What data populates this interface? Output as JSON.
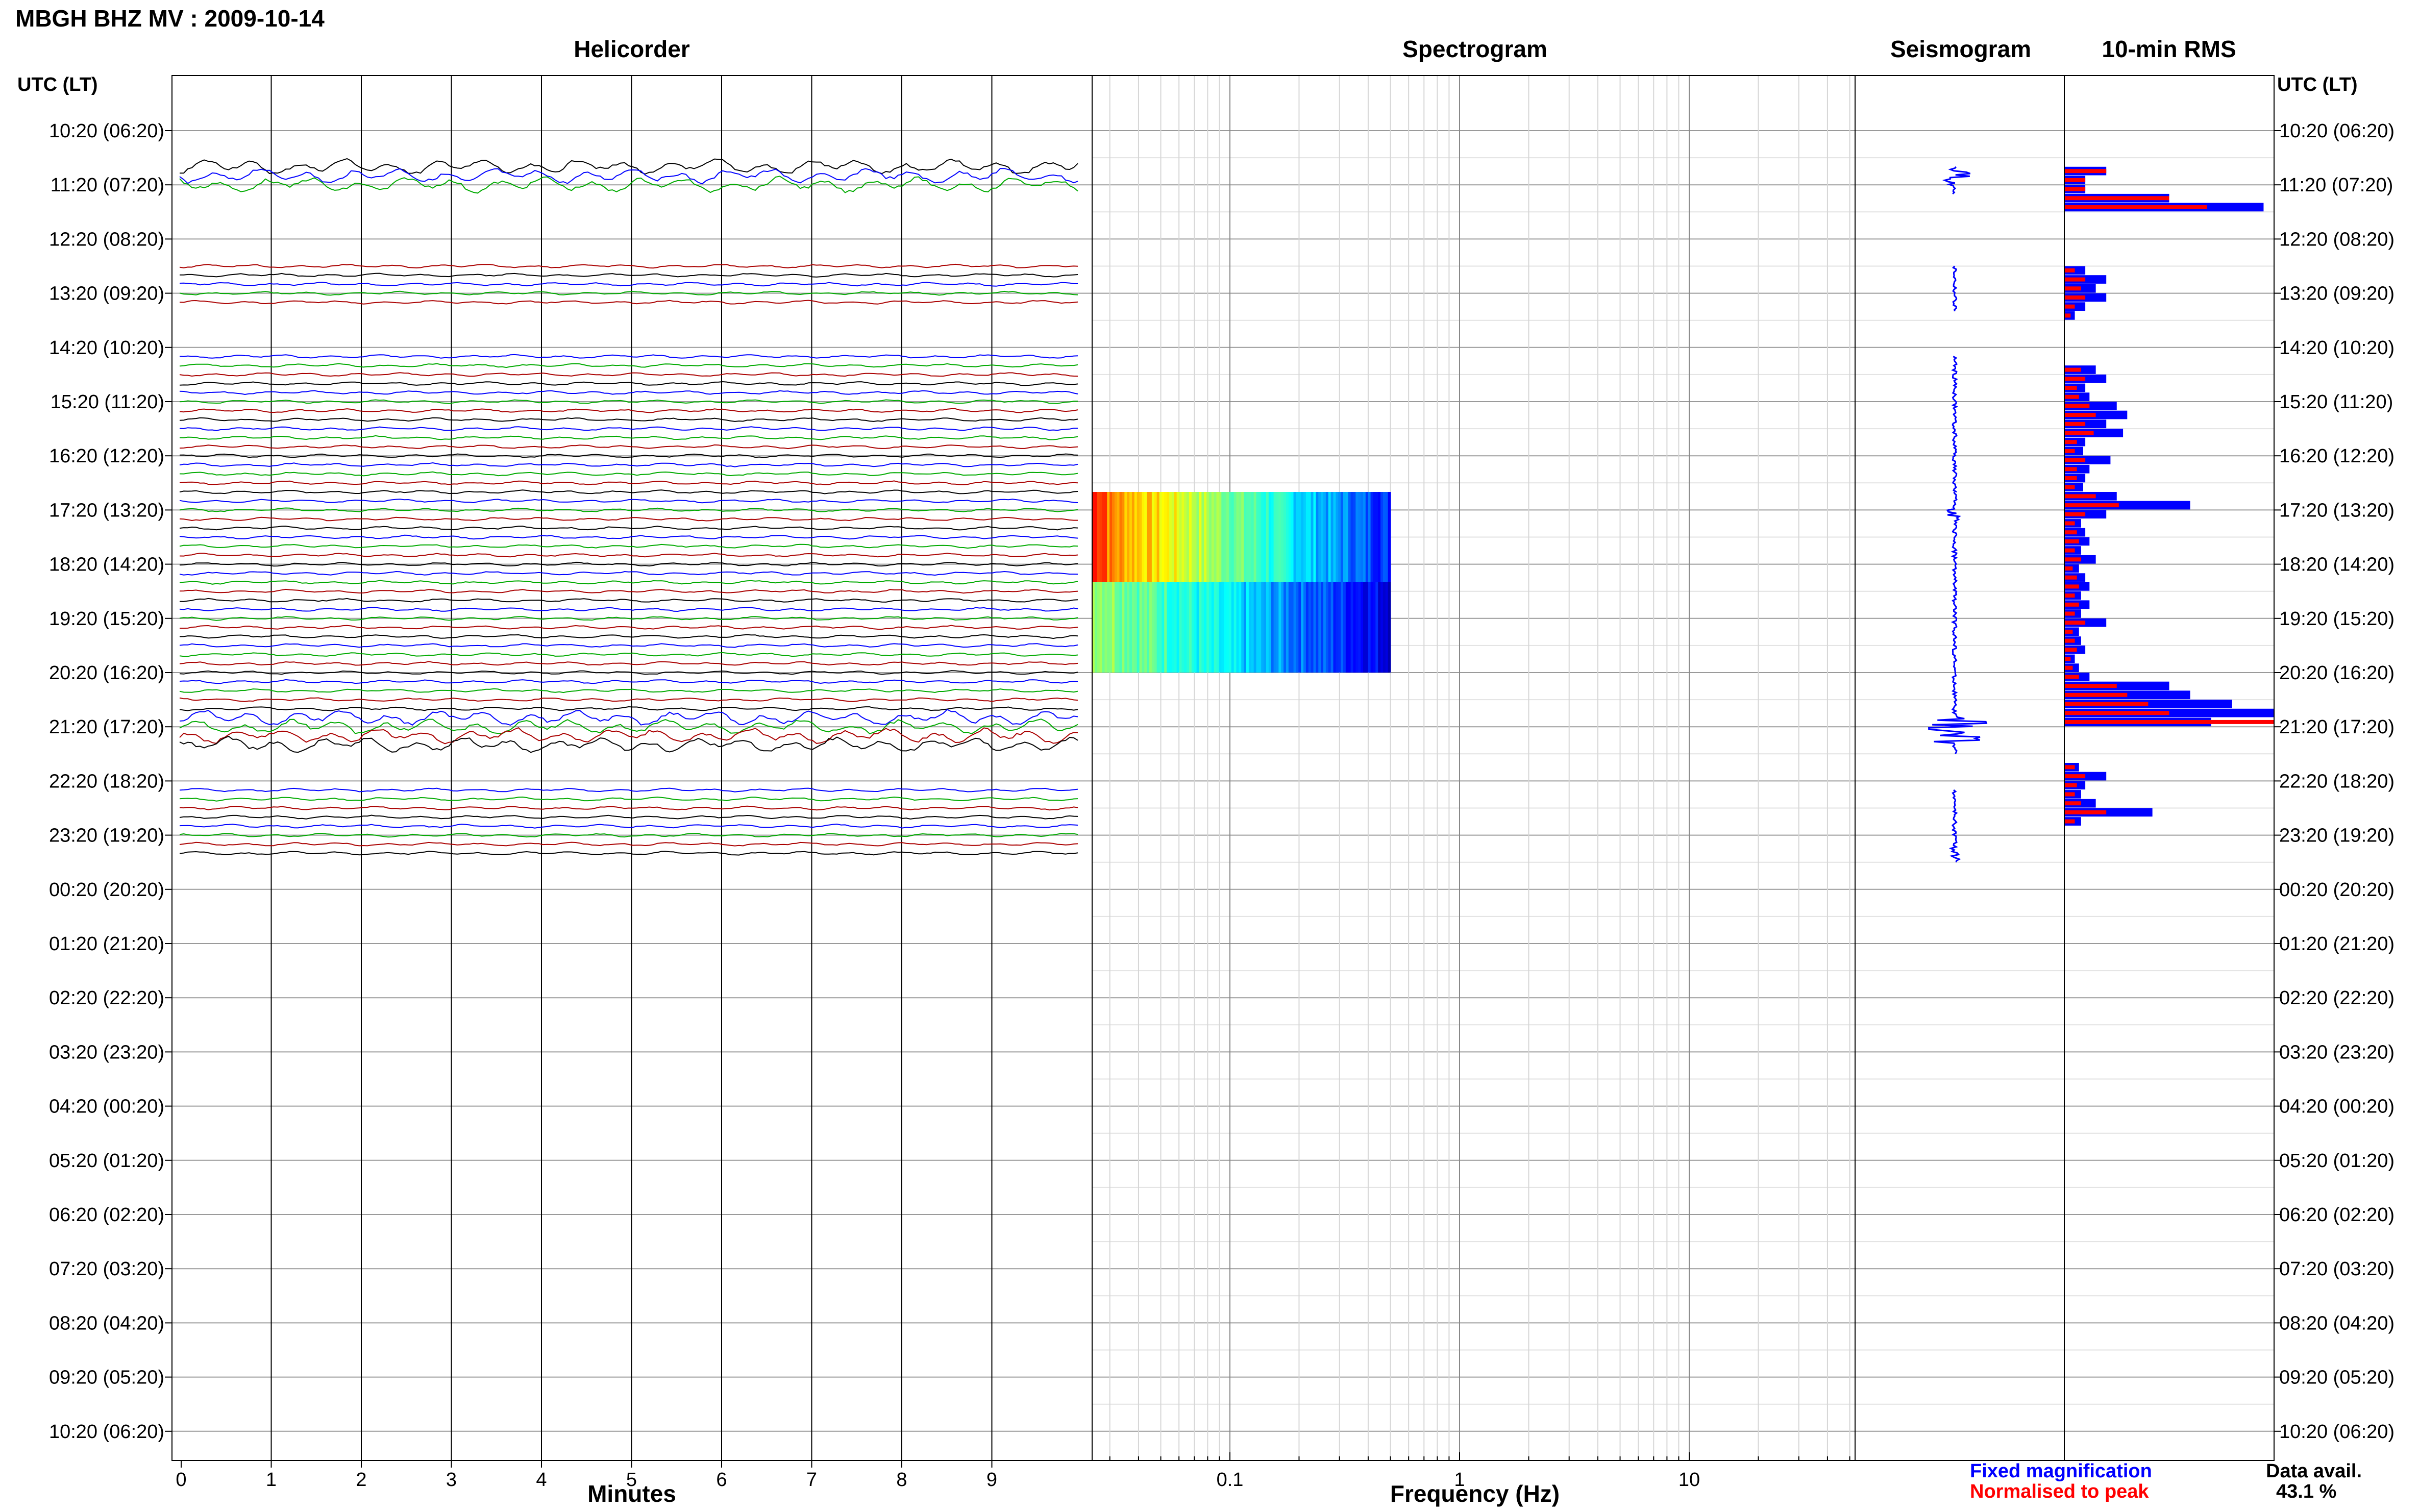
{
  "title": "MBGH BHZ MV : 2009-10-14",
  "panels": {
    "helicorder": "Helicorder",
    "spectrogram": "Spectrogram",
    "seismogram": "Seismogram",
    "rms": "10-min RMS"
  },
  "time_axis": {
    "label": "UTC (LT)",
    "ticks": [
      "10:20 (06:20)",
      "11:20 (07:20)",
      "12:20 (08:20)",
      "13:20 (09:20)",
      "14:20 (10:20)",
      "15:20 (11:20)",
      "16:20 (12:20)",
      "17:20 (13:20)",
      "18:20 (14:20)",
      "19:20 (15:20)",
      "20:20 (16:20)",
      "21:20 (17:20)",
      "22:20 (18:20)",
      "23:20 (19:20)",
      "00:20 (20:20)",
      "01:20 (21:20)",
      "02:20 (22:20)",
      "03:20 (23:20)",
      "04:20 (00:20)",
      "05:20 (01:20)",
      "06:20 (02:20)",
      "07:20 (03:20)",
      "08:20 (04:20)",
      "09:20 (05:20)",
      "10:20 (06:20)"
    ]
  },
  "helicorder_axis": {
    "label": "Minutes",
    "ticks": [
      "0",
      "1",
      "2",
      "3",
      "4",
      "5",
      "6",
      "7",
      "8",
      "9"
    ]
  },
  "spectrogram_axis": {
    "label": "Frequency (Hz)",
    "ticks": [
      "0.1",
      "1",
      "10"
    ]
  },
  "legend": {
    "fixed": "Fixed magnification",
    "normalised": "Normalised to peak",
    "fixed_color": "#0000ff",
    "normalised_color": "#ff0000"
  },
  "data_avail": {
    "label": "Data avail.",
    "value": "43.1 %"
  },
  "colors": {
    "trace_cycle": [
      "#000000",
      "#0000ff",
      "#00aa00",
      "#aa0000"
    ]
  },
  "chart_data": {
    "type": "helicorder",
    "day": "2009-10-14",
    "station": "MBGH",
    "channel": "BHZ",
    "network": "MV",
    "data_segments_utc": [
      [
        "11:00",
        "11:30"
      ],
      [
        "12:50",
        "13:40"
      ],
      [
        "14:30",
        "17:00"
      ],
      [
        "17:00",
        "21:50"
      ],
      [
        "22:30",
        "23:50"
      ]
    ],
    "spectrogram_segments_utc": [
      [
        "17:00",
        "18:40"
      ],
      [
        "18:40",
        "20:20"
      ]
    ],
    "spectrogram_freq_range_hz": [
      0.03,
      0.5
    ],
    "rms_10min": {
      "start_utc": "11:00",
      "fixed_magnification": [
        0.2,
        0.1,
        0.1,
        0.5,
        0.95,
        0,
        0,
        0,
        0,
        0,
        0,
        0.1,
        0.2,
        0.15,
        0.2,
        0.1,
        0.05,
        0,
        0,
        0,
        0,
        0,
        0.15,
        0.2,
        0.1,
        0.12,
        0.25,
        0.3,
        0.2,
        0.28,
        0.1,
        0.09,
        0.22,
        0.12,
        0.1,
        0.09,
        0.25,
        0.6,
        0.2,
        0.08,
        0.1,
        0.12,
        0.08,
        0.15,
        0.07,
        0.1,
        0.12,
        0.08,
        0.12,
        0.08,
        0.2,
        0.07,
        0.08,
        0.1,
        0.05,
        0.07,
        0.12,
        0.5,
        0.6,
        0.8,
        1.0,
        0.7,
        0,
        0,
        0,
        0,
        0.07,
        0.2,
        0.1,
        0.08,
        0.15,
        0.42,
        0.08
      ],
      "normalised_to_peak": [
        0.2,
        0.1,
        0.1,
        0.5,
        0.68,
        0,
        0,
        0,
        0,
        0,
        0,
        0.05,
        0.1,
        0.08,
        0.1,
        0.05,
        0.03,
        0,
        0,
        0,
        0,
        0,
        0.08,
        0.1,
        0.06,
        0.07,
        0.12,
        0.15,
        0.1,
        0.14,
        0.06,
        0.05,
        0.1,
        0.06,
        0.06,
        0.05,
        0.15,
        0.26,
        0.1,
        0.05,
        0.06,
        0.07,
        0.05,
        0.08,
        0.04,
        0.06,
        0.07,
        0.05,
        0.07,
        0.05,
        0.1,
        0.04,
        0.05,
        0.06,
        0.03,
        0.04,
        0.07,
        0.25,
        0.3,
        0.4,
        0.5,
        1.0,
        0,
        0,
        0,
        0,
        0.05,
        0.1,
        0.06,
        0.05,
        0.08,
        0.2,
        0.05
      ]
    }
  }
}
